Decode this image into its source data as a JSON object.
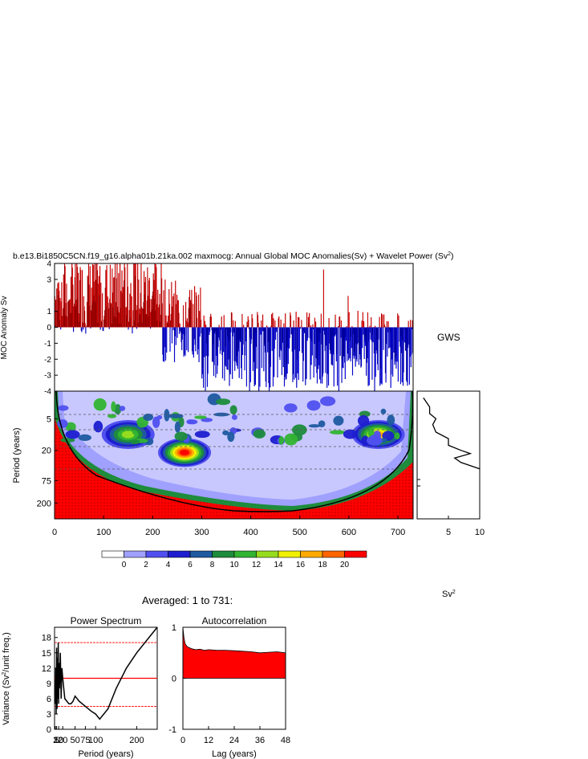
{
  "title_text": "b.e13.Bi1850C5CN.f19_g16.alpha01b.21ka.002 maxmocg: Annual Global MOC Anomalies(Sv) + Wavelet Power (Sv",
  "title_sup": "2",
  "title_close": ")",
  "gws_label": "GWS",
  "sv2_label": "Sv",
  "sv2_sup": "2",
  "averaged_label": "Averaged: 1 to 731:",
  "colors": {
    "positive": "#ff0000",
    "negative": "#0000ff",
    "axis": "#000000"
  },
  "chart_data": [
    {
      "type": "bar",
      "name": "anomaly-series",
      "ylabel": "MOC Anomaly Sv",
      "ylim": [
        -4,
        4
      ],
      "xlim": [
        0,
        731
      ],
      "yticks": [
        4,
        3,
        1,
        0,
        -1,
        -2,
        -3,
        -4
      ],
      "ytick_labels": [
        "4",
        "3",
        "1",
        "0",
        "-1",
        "-2",
        "-3",
        "-4"
      ],
      "note": "Annual values; early years mostly positive (up to ~4), later years mostly negative (down to ~-4)",
      "segments": [
        {
          "x0": 0,
          "x1": 220,
          "mean": 2.0,
          "amp": 2.4
        },
        {
          "x0": 220,
          "x1": 300,
          "mean": 0.4,
          "amp": 2.6
        },
        {
          "x0": 300,
          "x1": 731,
          "mean": -1.4,
          "amp": 2.4
        }
      ]
    },
    {
      "type": "heatmap",
      "name": "wavelet-power",
      "ylabel": "Period (years)",
      "xlim": [
        0,
        731
      ],
      "xticks": [
        0,
        100,
        200,
        300,
        400,
        500,
        600,
        700
      ],
      "yticks": [
        5,
        20,
        75,
        200
      ],
      "colorbar_levels": [
        "0",
        "2",
        "4",
        "6",
        "8",
        "10",
        "12",
        "14",
        "16",
        "18",
        "20"
      ],
      "colorbar_colors": [
        "#ffffff",
        "#a0a0ff",
        "#5050f0",
        "#1e1ed0",
        "#1e5aa0",
        "#1e8c3c",
        "#32b432",
        "#96dc1e",
        "#f0f000",
        "#ffaa00",
        "#ff6400",
        "#ff0000"
      ],
      "hotspots": [
        {
          "year": 265,
          "period": 22,
          "power": 20
        },
        {
          "year": 150,
          "period": 10,
          "power": 12
        },
        {
          "year": 660,
          "period": 10,
          "power": 16
        }
      ]
    },
    {
      "type": "line",
      "name": "gws",
      "xlabel": "Sv2",
      "xticks": [
        5,
        10
      ],
      "x": [
        1,
        2,
        2,
        3,
        2.5,
        3,
        5,
        5,
        7,
        8.5,
        6,
        7,
        10
      ],
      "y": [
        2,
        3,
        4,
        5,
        6.5,
        9,
        12,
        16,
        20,
        23,
        28,
        34,
        45
      ]
    },
    {
      "type": "line",
      "name": "power-spectrum",
      "title": "Power Spectrum",
      "xlabel": "Period (years)",
      "ylabel": "Variance (Sv2/unit freq.)",
      "xticks": [
        2,
        5,
        10,
        20,
        50,
        75,
        100,
        200
      ],
      "xtick_labels": [
        "2",
        "5",
        "10",
        "20",
        "50",
        "75",
        "100",
        "200"
      ],
      "yticks": [
        0,
        3,
        6,
        9,
        12,
        15,
        18
      ],
      "ylim": [
        0,
        20
      ],
      "x": [
        2,
        3,
        4,
        5,
        6,
        7,
        8,
        9,
        10,
        11,
        12,
        14,
        16,
        18,
        20,
        25,
        30,
        35,
        40,
        45,
        50,
        60,
        75,
        90,
        100,
        110,
        130,
        150,
        175,
        200,
        250
      ],
      "y": [
        5,
        12,
        3,
        16,
        4,
        14,
        6,
        17,
        5,
        13,
        8,
        15,
        6,
        12,
        10,
        6,
        5.5,
        5,
        5,
        5.5,
        6.5,
        5.5,
        4.5,
        3.5,
        3,
        2,
        4,
        8,
        12,
        15,
        20
      ],
      "reference_lines": [
        {
          "name": "upper",
          "y": 17
        },
        {
          "name": "mean",
          "y": 10
        },
        {
          "name": "lower",
          "y": 4.5
        }
      ]
    },
    {
      "type": "area",
      "name": "autocorrelation",
      "title": "Autocorrelation",
      "xlabel": "Lag (years)",
      "xticks": [
        0,
        12,
        24,
        36,
        48
      ],
      "yticks": [
        1,
        0,
        -1
      ],
      "ylim": [
        -1,
        1
      ],
      "xlim": [
        0,
        48
      ],
      "x": [
        0,
        0.5,
        1,
        2,
        3,
        4,
        6,
        8,
        10,
        12,
        16,
        20,
        24,
        28,
        32,
        36,
        40,
        44,
        48
      ],
      "y": [
        1.0,
        0.8,
        0.68,
        0.62,
        0.6,
        0.58,
        0.56,
        0.57,
        0.55,
        0.56,
        0.55,
        0.55,
        0.54,
        0.53,
        0.52,
        0.5,
        0.51,
        0.52,
        0.5
      ]
    }
  ]
}
